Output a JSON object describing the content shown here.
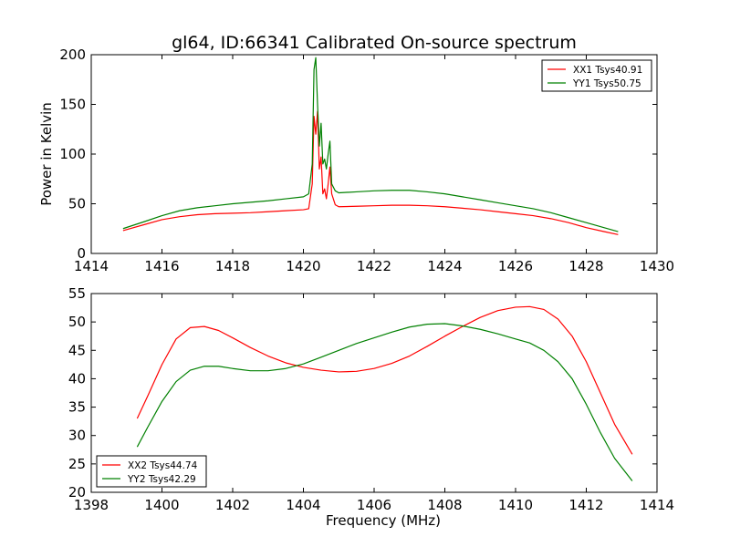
{
  "title": "gl64, ID:66341 Calibrated On-source spectrum",
  "chart_data": [
    {
      "type": "line",
      "title": "gl64, ID:66341 Calibrated On-source spectrum",
      "xlabel": "",
      "ylabel": "Power in Kelvin",
      "xlim": [
        1414,
        1430
      ],
      "ylim": [
        0,
        200
      ],
      "xticks": [
        1414,
        1416,
        1418,
        1420,
        1422,
        1424,
        1426,
        1428,
        1430
      ],
      "yticks": [
        0,
        50,
        100,
        150,
        200
      ],
      "grid": false,
      "legend_position": "top-right",
      "series": [
        {
          "name": "XX1 Tsys40.91",
          "color": "#ff0000",
          "x": [
            1414.9,
            1415.5,
            1416.0,
            1416.5,
            1417.0,
            1417.5,
            1418.0,
            1418.5,
            1419.0,
            1419.5,
            1420.0,
            1420.15,
            1420.25,
            1420.3,
            1420.35,
            1420.4,
            1420.45,
            1420.5,
            1420.55,
            1420.6,
            1420.65,
            1420.7,
            1420.75,
            1420.8,
            1420.9,
            1421.0,
            1421.5,
            1422.0,
            1422.5,
            1423.0,
            1423.5,
            1424.0,
            1424.5,
            1425.0,
            1425.5,
            1426.0,
            1426.5,
            1427.0,
            1427.5,
            1428.0,
            1428.5,
            1428.9
          ],
          "y": [
            23,
            29,
            34,
            37,
            39,
            40,
            40.5,
            41,
            42,
            43,
            44,
            45,
            70,
            138,
            120,
            143,
            85,
            97,
            60,
            65,
            55,
            70,
            87,
            60,
            49,
            47,
            47.5,
            48,
            48.5,
            48.5,
            48,
            47,
            45.5,
            44,
            42,
            40,
            38,
            35,
            31,
            26,
            22,
            19
          ]
        },
        {
          "name": "YY1 Tsys50.75",
          "color": "#008000",
          "x": [
            1414.9,
            1415.5,
            1416.0,
            1416.5,
            1417.0,
            1417.5,
            1418.0,
            1418.5,
            1419.0,
            1419.5,
            1420.0,
            1420.15,
            1420.25,
            1420.3,
            1420.35,
            1420.4,
            1420.45,
            1420.5,
            1420.55,
            1420.6,
            1420.65,
            1420.7,
            1420.75,
            1420.8,
            1420.9,
            1421.0,
            1421.5,
            1422.0,
            1422.5,
            1423.0,
            1423.5,
            1424.0,
            1424.5,
            1425.0,
            1425.5,
            1426.0,
            1426.5,
            1427.0,
            1427.5,
            1428.0,
            1428.5,
            1428.9
          ],
          "y": [
            25,
            32,
            38,
            43,
            46,
            48,
            50,
            51.5,
            53,
            55,
            57,
            60,
            90,
            185,
            197,
            150,
            108,
            131,
            90,
            95,
            85,
            100,
            113,
            70,
            63,
            61,
            62,
            63,
            63.5,
            63.5,
            62,
            60,
            57,
            54,
            51,
            48,
            45,
            41,
            36,
            31,
            26,
            22
          ]
        }
      ]
    },
    {
      "type": "line",
      "title": "",
      "xlabel": "Frequency (MHz)",
      "ylabel": "",
      "xlim": [
        1398,
        1414
      ],
      "ylim": [
        20,
        55
      ],
      "xticks": [
        1398,
        1400,
        1402,
        1404,
        1406,
        1408,
        1410,
        1412,
        1414
      ],
      "yticks": [
        20,
        25,
        30,
        35,
        40,
        45,
        50,
        55
      ],
      "grid": false,
      "legend_position": "bottom-left",
      "series": [
        {
          "name": "XX2 Tsys44.74",
          "color": "#ff0000",
          "x": [
            1399.3,
            1399.6,
            1400.0,
            1400.4,
            1400.8,
            1401.2,
            1401.6,
            1402.0,
            1402.5,
            1403.0,
            1403.5,
            1404.0,
            1404.5,
            1405.0,
            1405.5,
            1406.0,
            1406.5,
            1407.0,
            1407.5,
            1408.0,
            1408.5,
            1409.0,
            1409.5,
            1410.0,
            1410.4,
            1410.8,
            1411.2,
            1411.6,
            1412.0,
            1412.4,
            1412.8,
            1413.3
          ],
          "y": [
            33,
            37,
            42.5,
            47,
            49,
            49.2,
            48.5,
            47.2,
            45.5,
            44,
            42.8,
            42,
            41.5,
            41.2,
            41.3,
            41.8,
            42.7,
            44,
            45.7,
            47.5,
            49.2,
            50.8,
            52,
            52.6,
            52.7,
            52.2,
            50.5,
            47.5,
            43,
            37.5,
            32,
            26.7
          ]
        },
        {
          "name": "YY2 Tsys42.29",
          "color": "#008000",
          "x": [
            1399.3,
            1399.6,
            1400.0,
            1400.4,
            1400.8,
            1401.2,
            1401.6,
            1402.0,
            1402.5,
            1403.0,
            1403.5,
            1404.0,
            1404.5,
            1405.0,
            1405.5,
            1406.0,
            1406.5,
            1407.0,
            1407.5,
            1408.0,
            1408.5,
            1409.0,
            1409.5,
            1410.0,
            1410.4,
            1410.8,
            1411.2,
            1411.6,
            1412.0,
            1412.4,
            1412.8,
            1413.3
          ],
          "y": [
            28,
            31.5,
            36,
            39.5,
            41.5,
            42.2,
            42.2,
            41.8,
            41.4,
            41.4,
            41.8,
            42.6,
            43.8,
            45,
            46.2,
            47.2,
            48.2,
            49.1,
            49.6,
            49.7,
            49.3,
            48.7,
            47.9,
            47,
            46.3,
            45,
            43,
            40,
            35.5,
            30.5,
            26,
            22
          ]
        }
      ]
    }
  ]
}
